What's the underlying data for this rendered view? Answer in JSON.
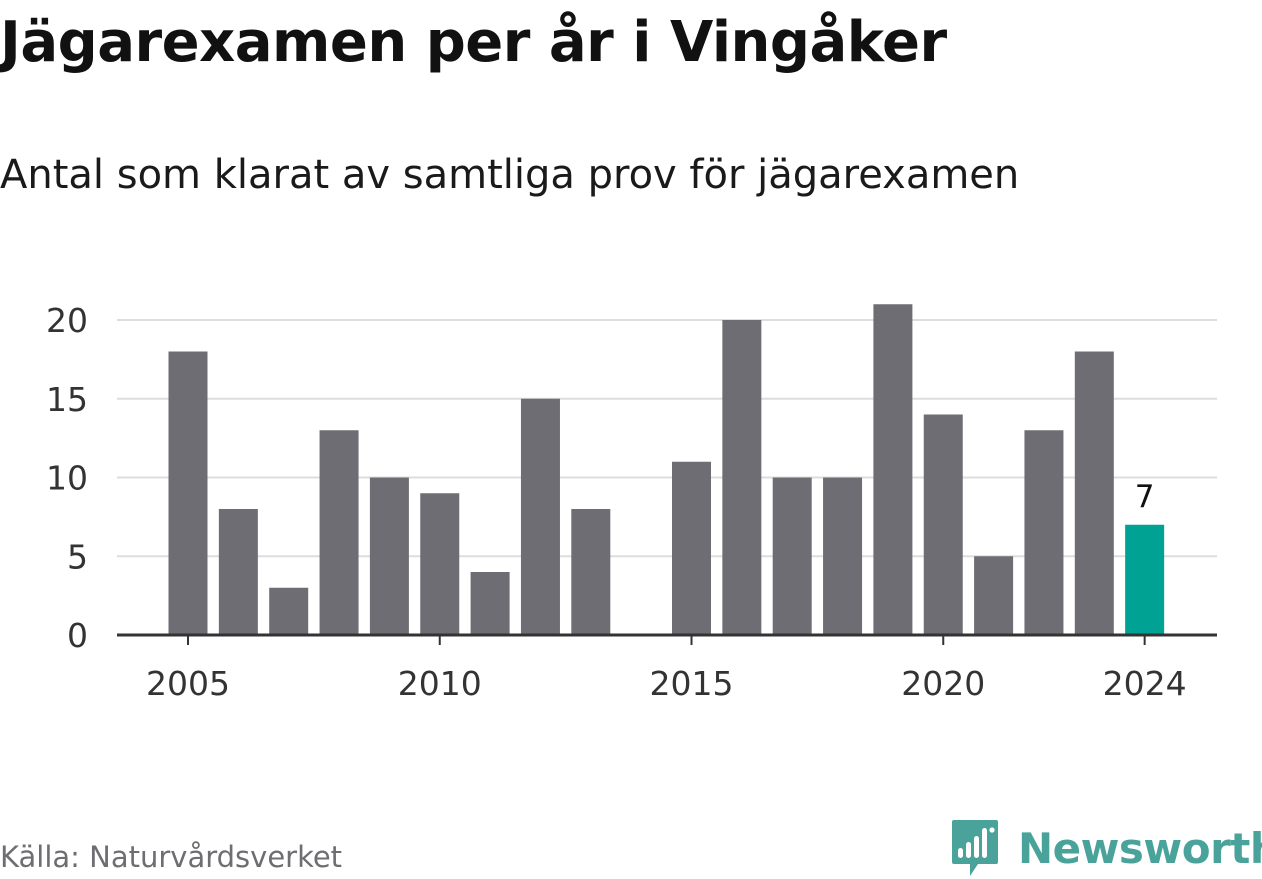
{
  "title": "Jägarexamen per år i Vingåker",
  "subtitle": "Antal som klarat av samtliga prov för jägarexamen",
  "source": "Källa: Naturvårdsverket",
  "brand": {
    "name": "Newsworthy",
    "icon": "newsworthy-logo-icon",
    "color": "#4aa39b"
  },
  "colors": {
    "bar": "#6e6d73",
    "highlight": "#00a393",
    "grid": "#dddddd",
    "axis": "#333333"
  },
  "chart_data": {
    "type": "bar",
    "x": [
      2005,
      2006,
      2007,
      2008,
      2009,
      2010,
      2011,
      2012,
      2013,
      2014,
      2015,
      2016,
      2017,
      2018,
      2019,
      2020,
      2021,
      2022,
      2023,
      2024
    ],
    "values": [
      18,
      8,
      3,
      13,
      10,
      9,
      4,
      15,
      8,
      null,
      11,
      20,
      10,
      10,
      21,
      14,
      5,
      13,
      18,
      7
    ],
    "x_ticks": [
      "2005",
      "2010",
      "2015",
      "2020",
      "2024"
    ],
    "y_ticks": [
      "0",
      "5",
      "10",
      "15",
      "20"
    ],
    "ylim": [
      0,
      22
    ],
    "grid": true,
    "highlight": {
      "x": 2024,
      "label": "7"
    }
  }
}
